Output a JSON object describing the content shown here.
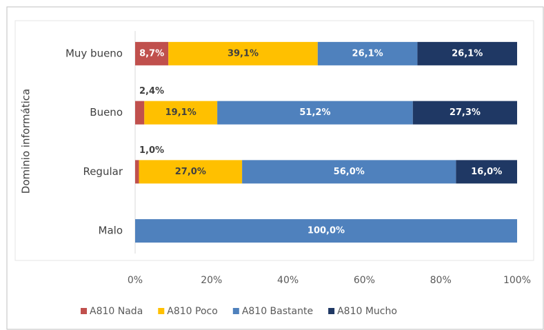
{
  "chart_data": {
    "type": "stacked-bar-horizontal",
    "y_axis_label": "Dominio informática",
    "categories": [
      "Muy bueno",
      "Bueno",
      "Regular",
      "Malo"
    ],
    "series": [
      {
        "name": "A810 Nada",
        "color": "#c0504d",
        "values": [
          8.7,
          2.4,
          1.0,
          null
        ],
        "value_labels": [
          "8,7%",
          "2,4%",
          "1,0%",
          null
        ]
      },
      {
        "name": "A810 Poco",
        "color": "#ffc000",
        "values": [
          39.1,
          19.1,
          27.0,
          null
        ],
        "value_labels": [
          "39,1%",
          "19,1%",
          "27,0%",
          null
        ]
      },
      {
        "name": "A810 Bastante",
        "color": "#4f81bd",
        "values": [
          26.1,
          51.2,
          56.0,
          100.0
        ],
        "value_labels": [
          "26,1%",
          "51,2%",
          "56,0%",
          "100,0%"
        ]
      },
      {
        "name": "A810 Mucho",
        "color": "#1f3864",
        "values": [
          26.1,
          27.3,
          16.0,
          null
        ],
        "value_labels": [
          "26,1%",
          "27,3%",
          "16,0%",
          null
        ]
      }
    ],
    "xlim": [
      0,
      100
    ],
    "xticks": [
      {
        "value": 0,
        "label": "0%"
      },
      {
        "value": 20,
        "label": "20%"
      },
      {
        "value": 40,
        "label": "40%"
      },
      {
        "value": 60,
        "label": "60%"
      },
      {
        "value": 80,
        "label": "80%"
      },
      {
        "value": 100,
        "label": "100%"
      }
    ],
    "legend": "bottom"
  }
}
